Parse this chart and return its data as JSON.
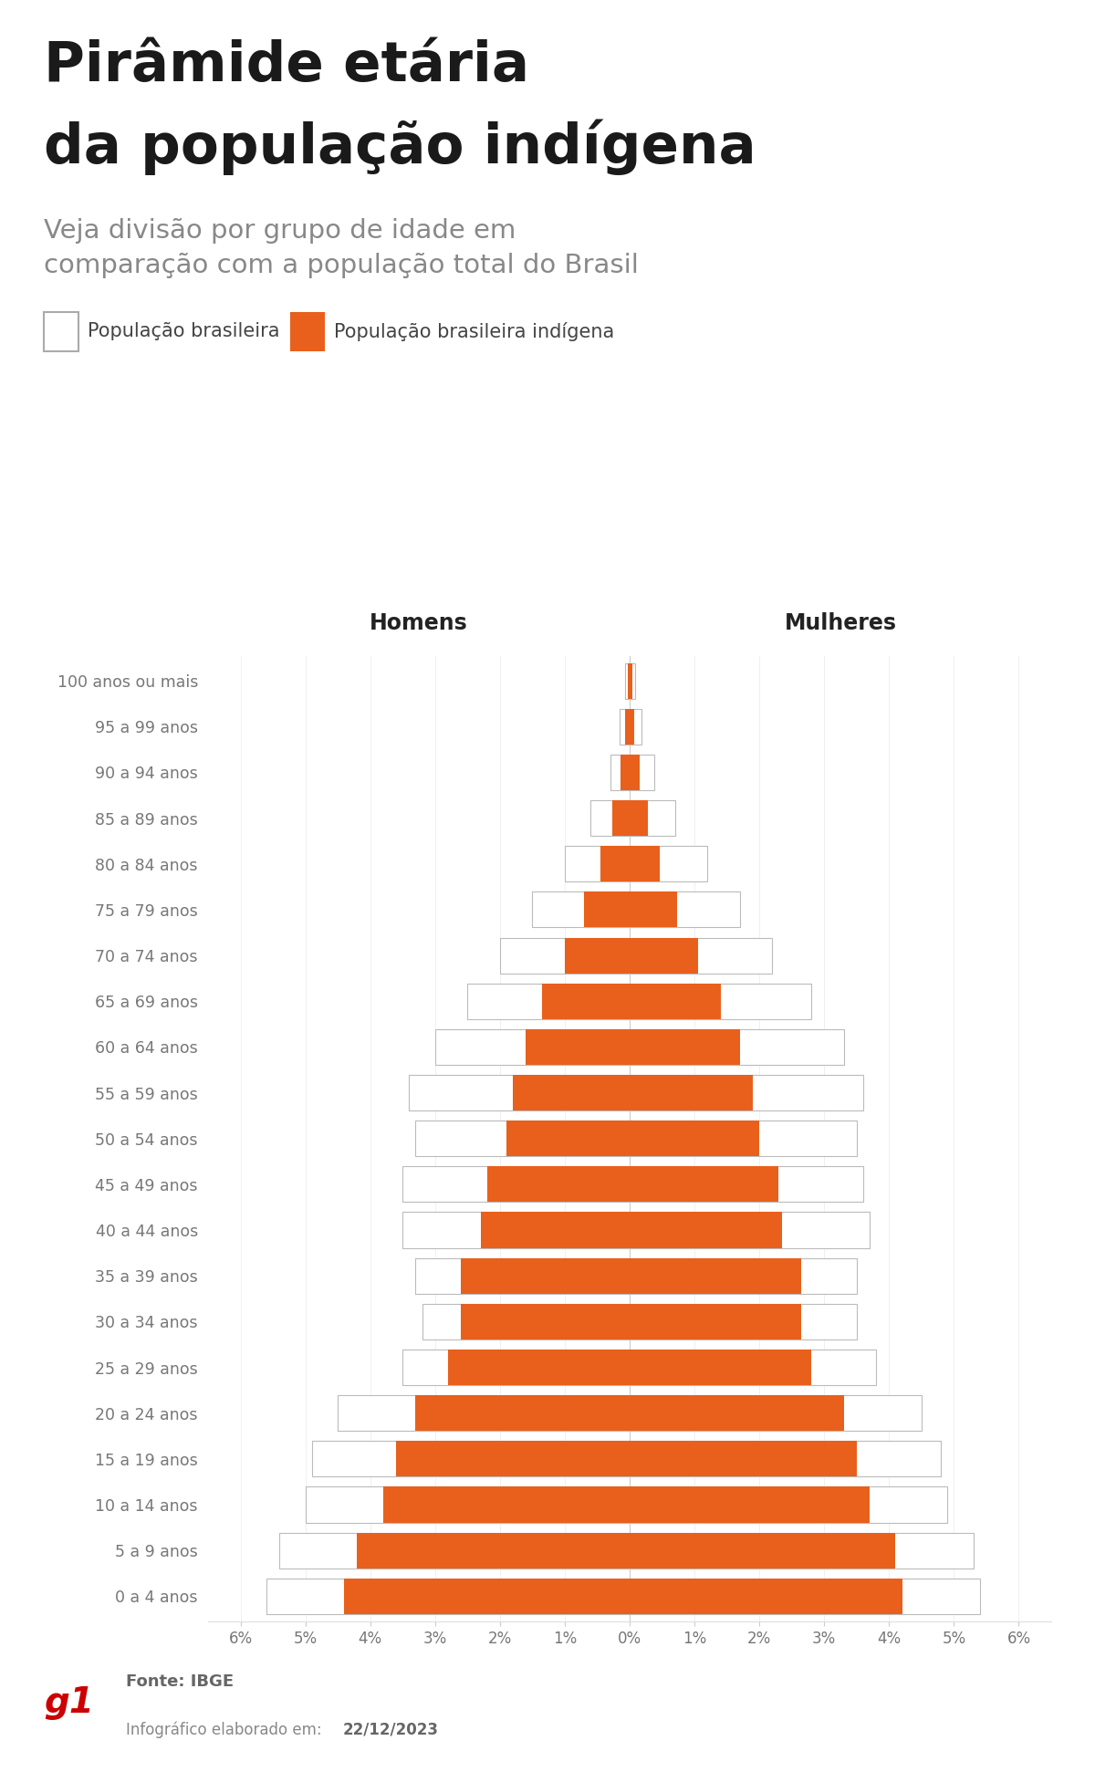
{
  "title_line1": "Pirâmide etária",
  "title_line2": "da população indígena",
  "subtitle": "Veja divisão por grupo de idade em\ncomparação com a população total do Brasil",
  "legend_label1": "População brasileira",
  "legend_label2": "População brasileira indígena",
  "homens_label": "Homens",
  "mulheres_label": "Mulheres",
  "source_label": "Fonte: IBGE",
  "date_prefix": "Infográfico elaborado em: ",
  "date_bold": "22/12/2023",
  "age_groups": [
    "0 a 4 anos",
    "5 a 9 anos",
    "10 a 14 anos",
    "15 a 19 anos",
    "20 a 24 anos",
    "25 a 29 anos",
    "30 a 34 anos",
    "35 a 39 anos",
    "40 a 44 anos",
    "45 a 49 anos",
    "50 a 54 anos",
    "55 a 59 anos",
    "60 a 64 anos",
    "65 a 69 anos",
    "70 a 74 anos",
    "75 a 79 anos",
    "80 a 84 anos",
    "85 a 89 anos",
    "90 a 94 anos",
    "95 a 99 anos",
    "100 anos ou mais"
  ],
  "men_total": [
    5.6,
    5.4,
    5.0,
    4.9,
    4.5,
    3.5,
    3.2,
    3.3,
    3.5,
    3.5,
    3.3,
    3.4,
    3.0,
    2.5,
    2.0,
    1.5,
    1.0,
    0.6,
    0.3,
    0.15,
    0.07
  ],
  "men_indigenous": [
    4.4,
    4.2,
    3.8,
    3.6,
    3.3,
    2.8,
    2.6,
    2.6,
    2.3,
    2.2,
    1.9,
    1.8,
    1.6,
    1.35,
    1.0,
    0.7,
    0.45,
    0.27,
    0.14,
    0.07,
    0.03
  ],
  "women_total": [
    5.4,
    5.3,
    4.9,
    4.8,
    4.5,
    3.8,
    3.5,
    3.5,
    3.7,
    3.6,
    3.5,
    3.6,
    3.3,
    2.8,
    2.2,
    1.7,
    1.2,
    0.7,
    0.38,
    0.18,
    0.09
  ],
  "women_indigenous": [
    4.2,
    4.1,
    3.7,
    3.5,
    3.3,
    2.8,
    2.65,
    2.65,
    2.35,
    2.3,
    2.0,
    1.9,
    1.7,
    1.4,
    1.05,
    0.73,
    0.47,
    0.28,
    0.15,
    0.07,
    0.04
  ],
  "orange_color": "#E8601C",
  "white_color": "#FFFFFF",
  "border_color": "#BBBBBB",
  "title_color": "#222222",
  "subtitle_color": "#888888",
  "label_color": "#777777",
  "bg_color": "#FFFFFF",
  "footer_bg": "#EBEBEB",
  "g1_red": "#CC0000"
}
